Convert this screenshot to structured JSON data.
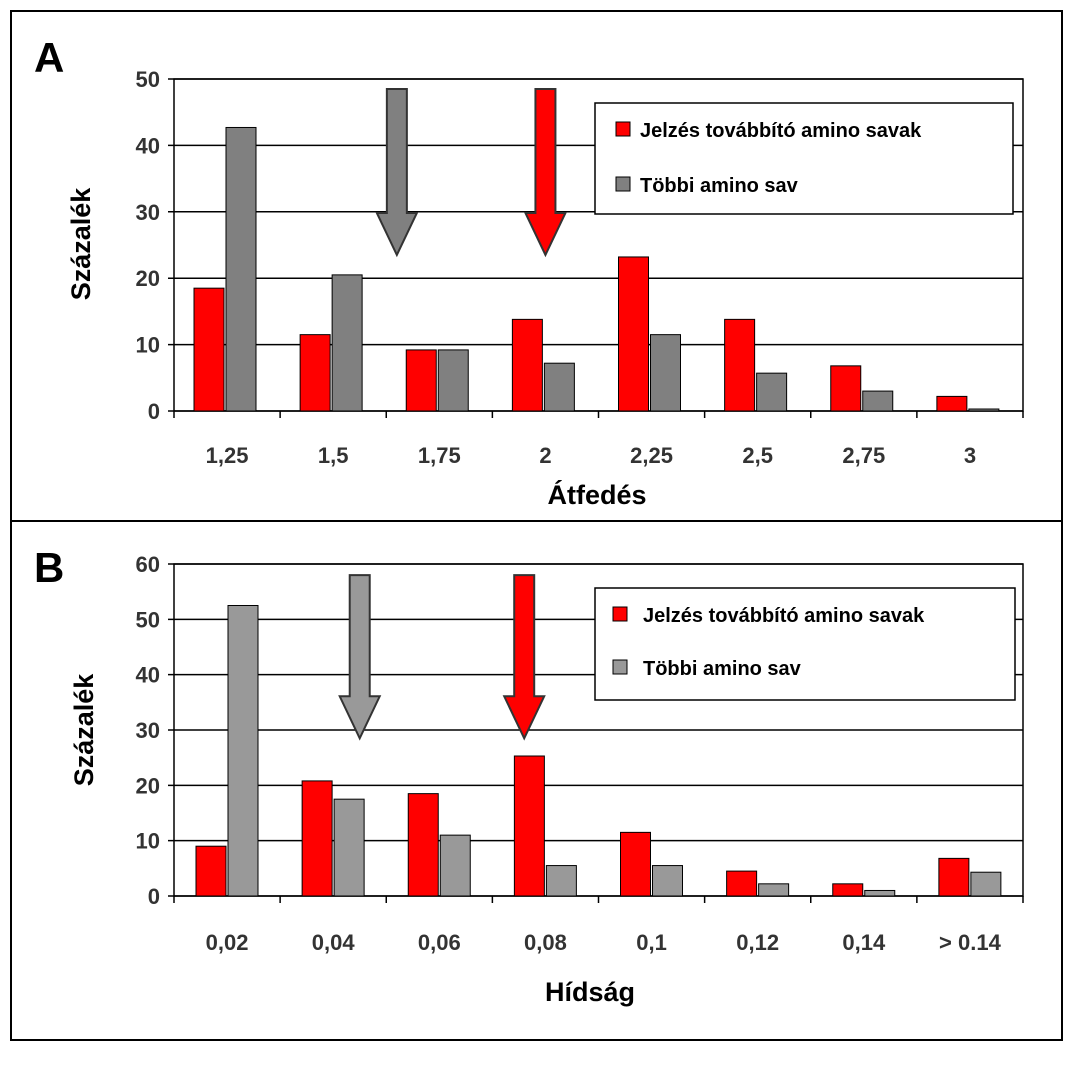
{
  "colors": {
    "signal": "#ff0000",
    "other": "#808080",
    "other_b": "#999999",
    "grid": "#000000",
    "border": "#000000"
  },
  "chart_data": [
    {
      "type": "bar",
      "panel_label": "A",
      "categories": [
        "1,25",
        "1,5",
        "1,75",
        "2",
        "2,25",
        "2,5",
        "2,75",
        "3"
      ],
      "series": [
        {
          "name": "Jelzés továbbító amino savak",
          "values": [
            18.5,
            11.5,
            9.2,
            13.8,
            23.2,
            13.8,
            6.8,
            2.2
          ]
        },
        {
          "name": "Többi amino sav",
          "values": [
            42.7,
            20.5,
            9.2,
            7.2,
            11.5,
            5.7,
            3.0,
            0.3
          ]
        }
      ],
      "xlabel": "Átfedés",
      "ylabel": "Százalék",
      "ylim": [
        0,
        50
      ],
      "yticks": [
        "0",
        "10",
        "20",
        "30",
        "40",
        "50"
      ],
      "grid": true,
      "legend_position": "top-right",
      "annotations": [
        {
          "type": "down-arrow",
          "color": "gray",
          "x": 1.65,
          "y_from": 48.5,
          "y_to": 23.5
        },
        {
          "type": "down-arrow",
          "color": "red",
          "x": 2.0,
          "y_from": 48.5,
          "y_to": 23.5
        }
      ]
    },
    {
      "type": "bar",
      "panel_label": "B",
      "categories": [
        "0,02",
        "0,04",
        "0,06",
        "0,08",
        "0,1",
        "0,12",
        "0,14",
        "> 0.14"
      ],
      "series": [
        {
          "name": "Jelzés továbbító amino savak",
          "values": [
            9.0,
            20.8,
            18.5,
            25.3,
            11.5,
            4.5,
            2.2,
            6.8
          ]
        },
        {
          "name": "Többi amino sav",
          "values": [
            52.5,
            17.5,
            11.0,
            5.5,
            5.5,
            2.2,
            1.0,
            4.3
          ]
        }
      ],
      "xlabel": "Hídság",
      "ylabel": "Százalék",
      "ylim": [
        0,
        60
      ],
      "yticks": [
        "0",
        "10",
        "20",
        "30",
        "40",
        "50",
        "60"
      ],
      "grid": true,
      "legend_position": "top-right",
      "annotations": [
        {
          "type": "down-arrow",
          "color": "gray",
          "x": 0.045,
          "y_from": 58.0,
          "y_to": 28.5
        },
        {
          "type": "down-arrow",
          "color": "red",
          "x": 0.076,
          "y_from": 58.0,
          "y_to": 28.5
        }
      ]
    }
  ]
}
